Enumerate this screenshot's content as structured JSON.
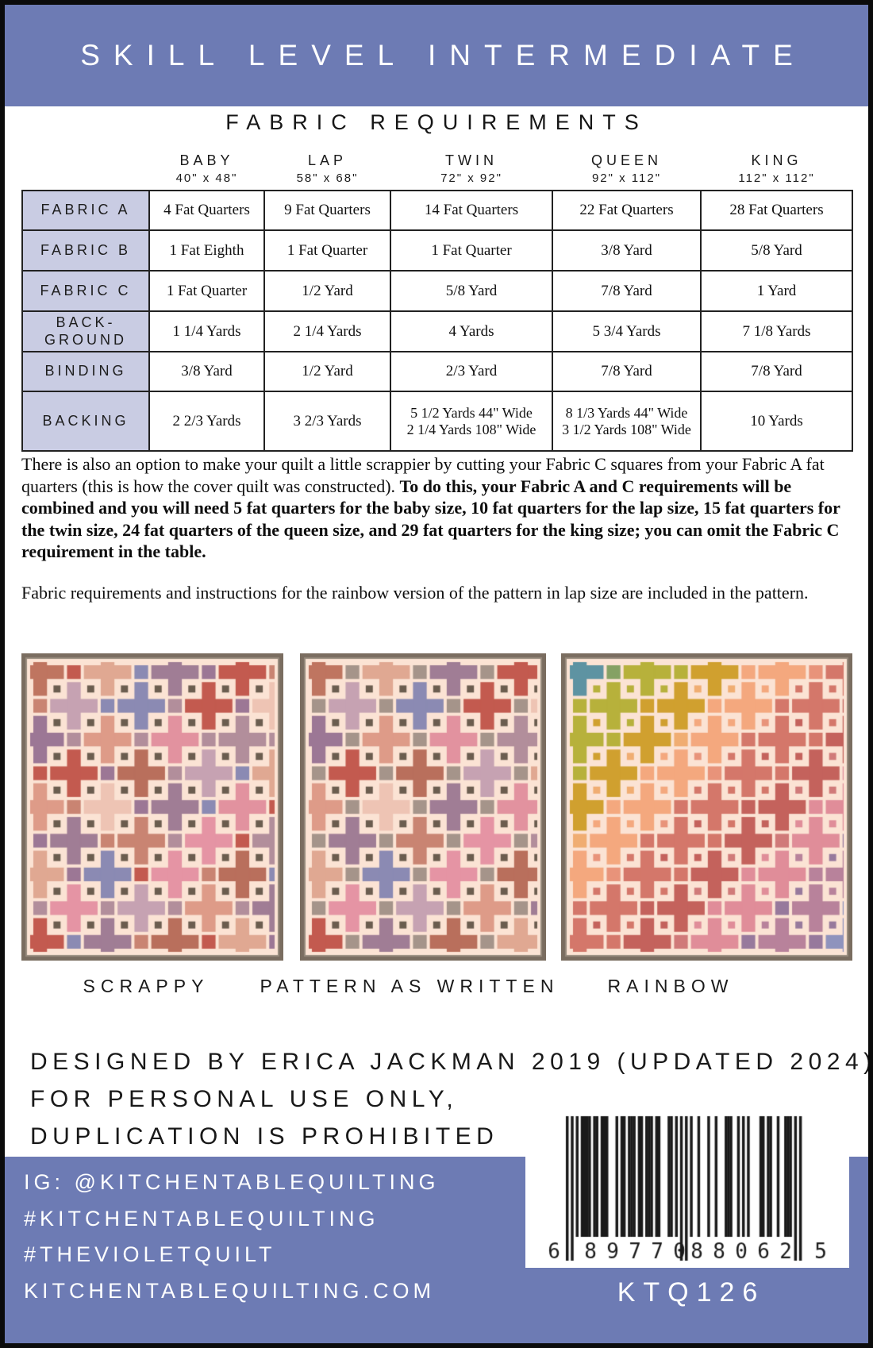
{
  "header": {
    "title": "SKILL LEVEL INTERMEDIATE"
  },
  "fabric_requirements": {
    "title": "FABRIC REQUIREMENTS",
    "columns": [
      {
        "name": "BABY",
        "size": "40\" x 48\""
      },
      {
        "name": "LAP",
        "size": "58\" x 68\""
      },
      {
        "name": "TWIN",
        "size": "72\" x 92\""
      },
      {
        "name": "QUEEN",
        "size": "92\" x 112\""
      },
      {
        "name": "KING",
        "size": "112\" x 112\""
      }
    ],
    "rows": [
      {
        "label": "FABRIC A",
        "values": [
          "4 Fat Quarters",
          "9 Fat Quarters",
          "14 Fat Quarters",
          "22 Fat Quarters",
          "28 Fat Quarters"
        ]
      },
      {
        "label": "FABRIC B",
        "values": [
          "1 Fat Eighth",
          "1 Fat Quarter",
          "1 Fat Quarter",
          "3/8 Yard",
          "5/8 Yard"
        ]
      },
      {
        "label": "FABRIC C",
        "values": [
          "1 Fat Quarter",
          "1/2 Yard",
          "5/8 Yard",
          "7/8 Yard",
          "1 Yard"
        ]
      },
      {
        "label": "BACK-\nGROUND",
        "values": [
          "1 1/4 Yards",
          "2 1/4 Yards",
          "4 Yards",
          "5 3/4 Yards",
          "7 1/8 Yards"
        ]
      },
      {
        "label": "BINDING",
        "values": [
          "3/8 Yard",
          "1/2 Yard",
          "2/3 Yard",
          "7/8 Yard",
          "7/8 Yard"
        ]
      },
      {
        "label": "BACKING",
        "values": [
          "2 2/3 Yards",
          "3 2/3 Yards",
          "5 1/2 Yards 44\" Wide\n2 1/4 Yards 108\" Wide",
          "8 1/3 Yards 44\" Wide\n3 1/2 Yards 108\" Wide",
          "10 Yards"
        ]
      }
    ]
  },
  "notes": {
    "scrappy_normal": "There is also an option to make your quilt a little scrappier by cutting your Fabric C squares from your Fabric A fat quarters (this is how the cover quilt was constructed). ",
    "scrappy_bold": "To do this, your Fabric A and C requirements will be combined and you will need 5 fat quarters for the baby size, 10 fat quarters for the lap size, 15 fat quarters for the twin size, 24 fat quarters of the queen size, and 29 fat quarters for the king size; you can omit the Fabric C requirement in the table.",
    "rainbow": "Fabric requirements and instructions for the rainbow version of the pattern in lap size are included in the pattern."
  },
  "quilts": [
    {
      "label": "SCRAPPY",
      "variant": "scrappy"
    },
    {
      "label": "PATTERN AS WRITTEN",
      "variant": "written"
    },
    {
      "label": "RAINBOW",
      "variant": "rainbow"
    }
  ],
  "quilt_art": {
    "background": "#fbe3d4",
    "border": "#7a6d60",
    "border_light": "#968a7c",
    "small_dark": "#6b5d4f",
    "medium_fixed": "#a5948a",
    "palette": {
      "terracotta": "#bf7560",
      "salmon": "#e0a892",
      "blush": "#eec4b4",
      "lilac": "#c6a2b2",
      "periwinkle": "#8b8ab3",
      "red": "#c35a4f",
      "plum": "#a07d95",
      "rose": "#e2929f",
      "brick": "#b96f5c",
      "salmonpink": "#de9b88",
      "graymauve": "#b28e9b",
      "pink": "#e594a4",
      "clay": "#c98472",
      "gray": "#a89a90",
      "mauve": "#9c7795"
    },
    "written_rows": [
      [
        "terracotta",
        "salmon",
        "plum",
        "red",
        "blush"
      ],
      [
        "lilac",
        "periwinkle",
        "red",
        "blush"
      ],
      [
        "mauve",
        "salmonpink",
        "rose",
        "graymauve",
        "terracotta"
      ],
      [
        "red",
        "brick",
        "lilac",
        "salmon"
      ],
      [
        "salmonpink",
        "blush",
        "plum",
        "rose",
        "periwinkle"
      ],
      [
        "plum",
        "clay",
        "pink",
        "graymauve"
      ],
      [
        "salmon",
        "periwinkle",
        "pink",
        "brick",
        "rose"
      ],
      [
        "pink",
        "lilac",
        "salmonpink",
        "plum"
      ],
      [
        "red",
        "plum",
        "brick",
        "salmon",
        "blush"
      ]
    ],
    "scrappy_squares": [
      "rose",
      "graymauve",
      "gray",
      "red",
      "blush",
      "periwinkle",
      "salmon",
      "mauve",
      "pink",
      "clay"
    ],
    "rainbow": [
      "#5e93a2",
      "#85a164",
      "#b7b13b",
      "#d0a02f",
      "#f0ad72",
      "#f4a87e",
      "#e8937a",
      "#d4776a",
      "#c4625c",
      "#d07a79",
      "#e08d99",
      "#b8829b",
      "#97799c",
      "#8f93bd"
    ]
  },
  "footer": {
    "designed_lines": [
      "DESIGNED BY ERICA JACKMAN 2019 (UPDATED 2024)",
      "FOR PERSONAL USE ONLY,",
      "DUPLICATION IS PROHIBITED"
    ],
    "social_lines": [
      "IG: @KITCHENTABLEQUILTING",
      "#KITCHENTABLEQUILTING",
      "#THEVIOLETQUILT",
      "KITCHENTABLEQUILTING.COM"
    ],
    "barcode": {
      "code": "689770880625",
      "display_groups": [
        "6",
        "89770",
        "88062",
        "5"
      ]
    },
    "sku": "KTQ126"
  },
  "colors": {
    "band_blue": "#6d7bb4",
    "table_label_bg": "#c9cce3",
    "quilt_background": "#fbe3d4"
  }
}
